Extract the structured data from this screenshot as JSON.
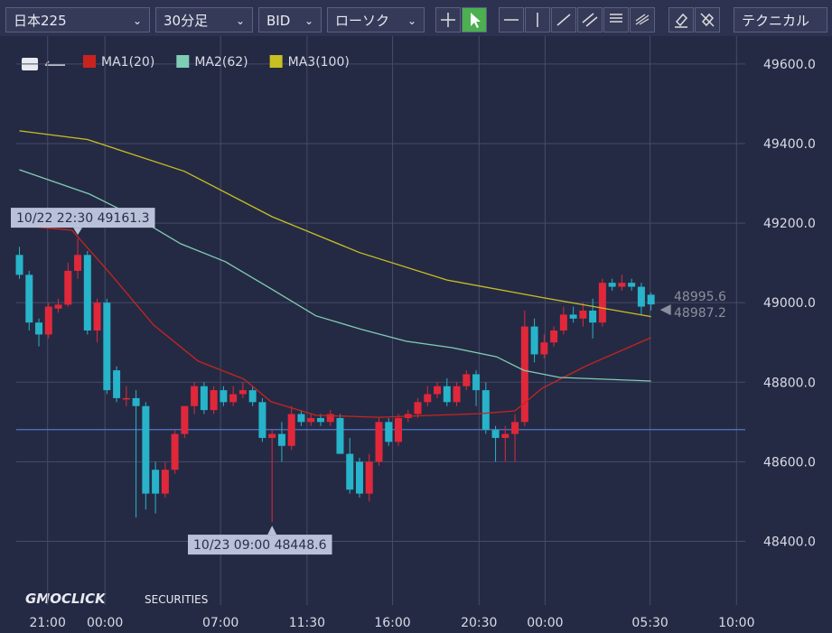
{
  "toolbar": {
    "symbol": "日本225",
    "timeframe": "30分足",
    "side": "BID",
    "chart_style": "ローソク",
    "technical": "テクニカル"
  },
  "logo": {
    "brand": "GMOCLICK",
    "suffix": "SECURITIES"
  },
  "chart_data": {
    "type": "candlestick",
    "up_color": "#e0283a",
    "down_color": "#27b3c9",
    "ylim": [
      48240,
      49670
    ],
    "yticks": [
      {
        "value": 48400,
        "label": "48400.0"
      },
      {
        "value": 48600,
        "label": "48600.0"
      },
      {
        "value": 48800,
        "label": "48800.0"
      },
      {
        "value": 49000,
        "label": "49000.0"
      },
      {
        "value": 49200,
        "label": "49200.0"
      },
      {
        "value": 49400,
        "label": "49400.0"
      },
      {
        "value": 49600,
        "label": "49600.0"
      }
    ],
    "xlim": [
      -2,
      74.7
    ],
    "xticks": [
      {
        "value": 2.9,
        "label": "21:00"
      },
      {
        "value": 8.8,
        "label": "00:00"
      },
      {
        "value": 20.7,
        "label": "07:00"
      },
      {
        "value": 29.6,
        "label": "11:30"
      },
      {
        "value": 38.4,
        "label": "16:00"
      },
      {
        "value": 47.3,
        "label": "20:30"
      },
      {
        "value": 54.1,
        "label": "00:00"
      },
      {
        "value": 64.9,
        "label": "05:30"
      },
      {
        "value": 73.8,
        "label": "10:00"
      }
    ],
    "grid": true,
    "open": [
      49120,
      49070,
      48950,
      48920,
      48985,
      48995,
      49080,
      49120,
      48930,
      49000,
      48830,
      48760,
      48760,
      48740,
      48580,
      48520,
      48580,
      48670,
      48740,
      48790,
      48730,
      48780,
      48750,
      48770,
      48780,
      48750,
      48660,
      48670,
      48640,
      48720,
      48700,
      48710,
      48700,
      48710,
      48620,
      48600,
      48520,
      48600,
      48700,
      48650,
      48710,
      48720,
      48750,
      48770,
      48790,
      48750,
      48790,
      48820,
      48780,
      48680,
      48660,
      48670,
      48700,
      48940,
      48870,
      48900,
      48930,
      48970,
      48960,
      48980,
      48950,
      49050,
      49040,
      49050,
      49040,
      49020
    ],
    "high": [
      49140,
      49080,
      48960,
      49000,
      49010,
      49100,
      49161.3,
      49130,
      49010,
      49010,
      48840,
      48790,
      48780,
      48750,
      48600,
      48600,
      48680,
      48740,
      48800,
      48800,
      48790,
      48790,
      48790,
      48800,
      48790,
      48760,
      48680,
      48700,
      48740,
      48730,
      48720,
      48720,
      48730,
      48720,
      48660,
      48610,
      48620,
      48710,
      48710,
      48720,
      48730,
      48760,
      48790,
      48800,
      48810,
      48800,
      48830,
      48830,
      48800,
      48690,
      48690,
      48720,
      48980,
      48960,
      48920,
      48940,
      48990,
      48990,
      49000,
      49010,
      49060,
      49060,
      49070,
      49060,
      49050,
      49025
    ],
    "low": [
      49060,
      48930,
      48890,
      48910,
      48975,
      48990,
      49060,
      48920,
      48900,
      48770,
      48750,
      48740,
      48460,
      48480,
      48470,
      48510,
      48570,
      48660,
      48720,
      48720,
      48720,
      48740,
      48740,
      48760,
      48740,
      48650,
      48448.6,
      48600,
      48630,
      48690,
      48690,
      48690,
      48690,
      48620,
      48520,
      48510,
      48500,
      48590,
      48640,
      48640,
      48700,
      48710,
      48740,
      48760,
      48740,
      48740,
      48780,
      48740,
      48670,
      48600,
      48600,
      48600,
      48690,
      48850,
      48860,
      48890,
      48920,
      48950,
      48940,
      48910,
      48940,
      49030,
      49030,
      49030,
      48970,
      48980
    ],
    "close": [
      49070,
      48950,
      48920,
      48990,
      48995,
      49080,
      49120,
      48930,
      49000,
      48780,
      48760,
      48760,
      48740,
      48520,
      48520,
      48580,
      48670,
      48740,
      48790,
      48730,
      48780,
      48750,
      48770,
      48780,
      48750,
      48660,
      48670,
      48640,
      48720,
      48700,
      48710,
      48700,
      48720,
      48620,
      48530,
      48520,
      48600,
      48700,
      48650,
      48710,
      48720,
      48750,
      48770,
      48790,
      48750,
      48790,
      48820,
      48780,
      48680,
      48660,
      48670,
      48700,
      48940,
      48870,
      48900,
      48930,
      48970,
      48960,
      48980,
      48950,
      49050,
      49040,
      49050,
      49040,
      48990,
      48995.6
    ],
    "series": [
      {
        "name": "MA1(20)",
        "color": "#c8241f",
        "x": [
          0,
          5.4,
          9.1,
          13.8,
          18.4,
          23.1,
          25.9,
          30.5,
          37,
          42.6,
          47.3,
          51,
          53.8,
          58.4,
          65
        ],
        "values": [
          49194,
          49182,
          49080,
          48944,
          48853,
          48808,
          48751,
          48717,
          48712,
          48717,
          48721,
          48728,
          48785,
          48842,
          48912
        ]
      },
      {
        "name": "MA2(62)",
        "color": "#7fcdb5",
        "x": [
          0,
          7.2,
          11.9,
          16.6,
          21.2,
          25.9,
          30.5,
          35.2,
          39.8,
          44.5,
          49.1,
          51.9,
          55.6,
          65
        ],
        "values": [
          49334,
          49273,
          49216,
          49148,
          49103,
          49035,
          48967,
          48933,
          48903,
          48887,
          48864,
          48830,
          48812,
          48803
        ]
      },
      {
        "name": "MA3(100)",
        "color": "#c8c020",
        "x": [
          0,
          7,
          17,
          26,
          35,
          44,
          54,
          65
        ],
        "values": [
          49432,
          49410,
          49330,
          49216,
          49126,
          49057,
          49012,
          48965
        ]
      }
    ],
    "hline": 48681,
    "annotations": [
      "10/22 22:30 49161.3",
      "10/23 09:00 48448.6"
    ],
    "last_labels": [
      "48995.6",
      "48987.2"
    ]
  }
}
